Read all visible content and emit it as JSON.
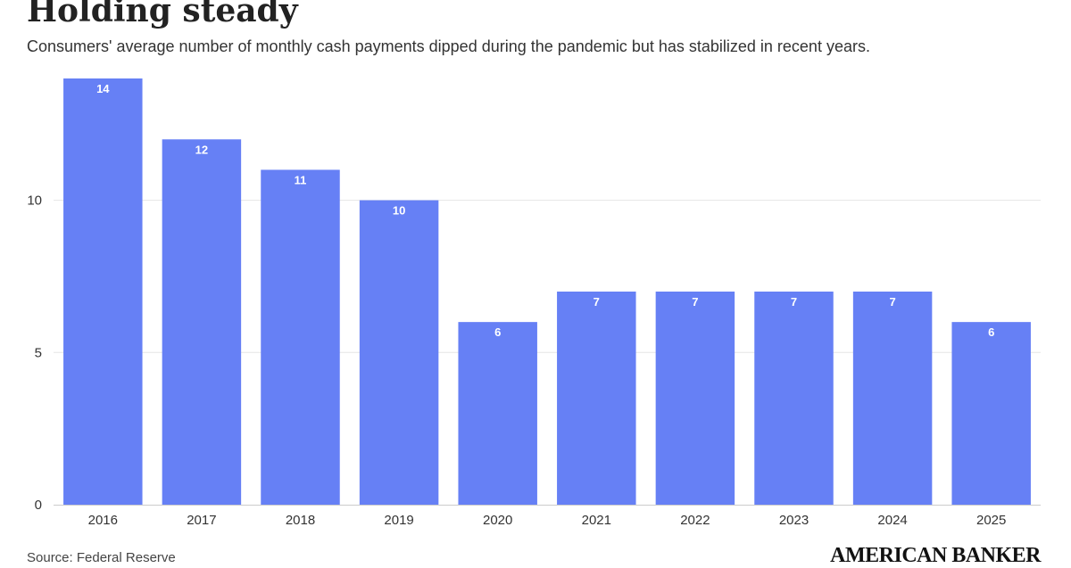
{
  "header": {
    "title": "Holding steady",
    "subtitle": "Consumers' average number of monthly cash payments dipped during the pandemic but has stabilized in recent years."
  },
  "footer": {
    "source": "Source: Federal Reserve",
    "brand": "AMERICAN BANKER"
  },
  "colors": {
    "bar": "#6680f5",
    "grid": "#e6e6e6",
    "axis": "#cccccc"
  },
  "chart_data": {
    "type": "bar",
    "title": "Holding steady",
    "subtitle": "Consumers' average number of monthly cash payments dipped during the pandemic but has stabilized in recent years.",
    "categories": [
      "2016",
      "2017",
      "2018",
      "2019",
      "2020",
      "2021",
      "2022",
      "2023",
      "2024",
      "2025"
    ],
    "values": [
      14,
      12,
      11,
      10,
      6,
      7,
      7,
      7,
      7,
      6
    ],
    "ylim": [
      0,
      14
    ],
    "yticks": [
      0,
      5,
      10
    ],
    "xlabel": "",
    "ylabel": "",
    "grid": true,
    "data_labels": true,
    "legend": "none"
  }
}
